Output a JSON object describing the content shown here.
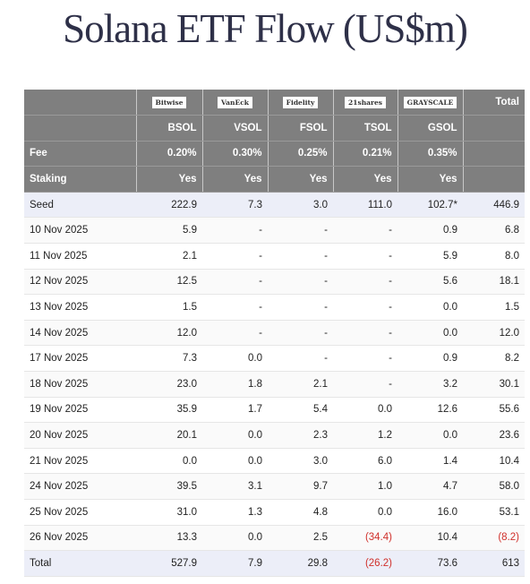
{
  "header": {
    "title": "Solana ETF Flow (US$m)"
  },
  "table": {
    "brands": [
      "Bitwise",
      "VanEck",
      "Fidelity",
      "21shares",
      "GRAYSCALE"
    ],
    "total_heading": "Total",
    "tickers": [
      "BSOL",
      "VSOL",
      "FSOL",
      "TSOL",
      "GSOL"
    ],
    "fee": {
      "label": "Fee",
      "values": [
        "0.20%",
        "0.30%",
        "0.25%",
        "0.21%",
        "0.35%"
      ]
    },
    "staking": {
      "label": "Staking",
      "values": [
        "Yes",
        "Yes",
        "Yes",
        "Yes",
        "Yes"
      ]
    },
    "rows": [
      {
        "label": "Seed",
        "cells": [
          "222.9",
          "7.3",
          "3.0",
          "111.0",
          "102.7*",
          "446.9"
        ]
      },
      {
        "label": "10 Nov 2025",
        "cells": [
          "5.9",
          "-",
          "-",
          "-",
          "0.9",
          "6.8"
        ]
      },
      {
        "label": "11 Nov 2025",
        "cells": [
          "2.1",
          "-",
          "-",
          "-",
          "5.9",
          "8.0"
        ]
      },
      {
        "label": "12 Nov 2025",
        "cells": [
          "12.5",
          "-",
          "-",
          "-",
          "5.6",
          "18.1"
        ]
      },
      {
        "label": "13 Nov 2025",
        "cells": [
          "1.5",
          "-",
          "-",
          "-",
          "0.0",
          "1.5"
        ]
      },
      {
        "label": "14 Nov 2025",
        "cells": [
          "12.0",
          "-",
          "-",
          "-",
          "0.0",
          "12.0"
        ]
      },
      {
        "label": "17 Nov 2025",
        "cells": [
          "7.3",
          "0.0",
          "-",
          "-",
          "0.9",
          "8.2"
        ]
      },
      {
        "label": "18 Nov 2025",
        "cells": [
          "23.0",
          "1.8",
          "2.1",
          "-",
          "3.2",
          "30.1"
        ]
      },
      {
        "label": "19 Nov 2025",
        "cells": [
          "35.9",
          "1.7",
          "5.4",
          "0.0",
          "12.6",
          "55.6"
        ]
      },
      {
        "label": "20 Nov 2025",
        "cells": [
          "20.1",
          "0.0",
          "2.3",
          "1.2",
          "0.0",
          "23.6"
        ]
      },
      {
        "label": "21 Nov 2025",
        "cells": [
          "0.0",
          "0.0",
          "3.0",
          "6.0",
          "1.4",
          "10.4"
        ]
      },
      {
        "label": "24 Nov 2025",
        "cells": [
          "39.5",
          "3.1",
          "9.7",
          "1.0",
          "4.7",
          "58.0"
        ]
      },
      {
        "label": "25 Nov 2025",
        "cells": [
          "31.0",
          "1.3",
          "4.8",
          "0.0",
          "16.0",
          "53.1"
        ]
      },
      {
        "label": "26 Nov 2025",
        "cells": [
          "13.3",
          "0.0",
          "2.5",
          "(34.4)",
          "10.4",
          "(8.2)"
        ]
      },
      {
        "label": "Total",
        "cells": [
          "527.9",
          "7.9",
          "29.8",
          "(26.2)",
          "73.6",
          "613"
        ]
      }
    ]
  }
}
